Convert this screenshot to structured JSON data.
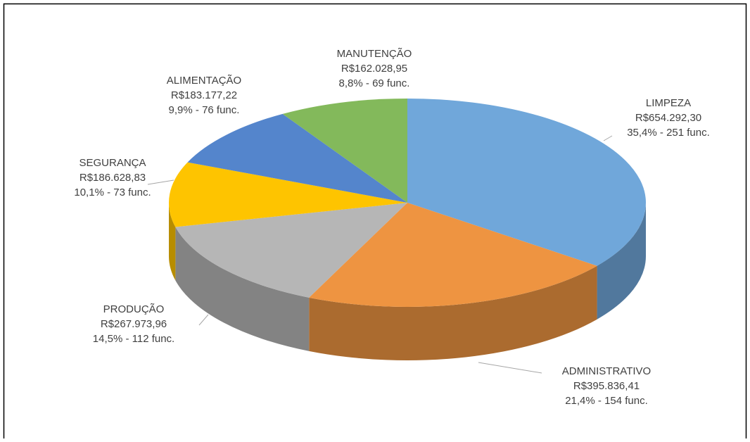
{
  "chart_data": {
    "type": "pie",
    "categories": [
      "LIMPEZA",
      "ADMINISTRATIVO",
      "PRODUÇÃO",
      "SEGURANÇA",
      "ALIMENTAÇÃO",
      "MANUTENÇÃO"
    ],
    "values": [
      654292.3,
      395836.41,
      267973.96,
      186628.83,
      183177.22,
      162028.95
    ],
    "value_labels": [
      "R$654.292,30",
      "R$395.836,41",
      "R$267.973,96",
      "R$186.628,83",
      "R$183.177,22",
      "R$162.028,95"
    ],
    "details": [
      "35,4% - 251 func.",
      "21,4% - 154 func.",
      "14,5% - 112 func.",
      "10,1% - 73 func.",
      "9,9% - 76 func.",
      "8,8% - 69 func."
    ],
    "colors": [
      "#70a7da",
      "#ee9441",
      "#b6b6b6",
      "#fec400",
      "#5485cc",
      "#83b95b"
    ]
  }
}
